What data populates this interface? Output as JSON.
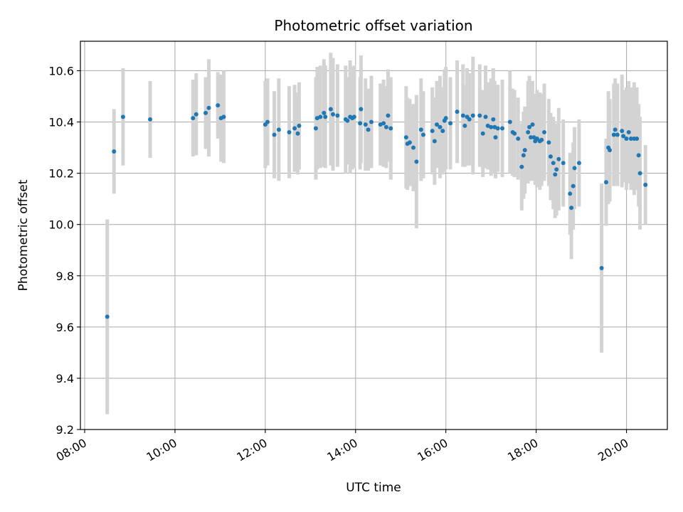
{
  "chart_data": {
    "type": "scatter",
    "title": "Photometric offset variation",
    "xlabel": "UTC time",
    "ylabel": "Photometric offset",
    "x_unit": "hours UTC",
    "xlim": [
      8.0,
      21.0
    ],
    "ylim": [
      9.2,
      10.715
    ],
    "x_ticks": [
      8,
      10,
      12,
      14,
      16,
      18,
      20
    ],
    "x_tick_labels": [
      "08:00",
      "10:00",
      "12:00",
      "14:00",
      "16:00",
      "18:00",
      "20:00"
    ],
    "y_ticks": [
      9.2,
      9.4,
      9.6,
      9.8,
      10.0,
      10.2,
      10.4,
      10.6
    ],
    "y_tick_labels": [
      "9.2",
      "9.4",
      "9.6",
      "9.8",
      "10.0",
      "10.2",
      "10.4",
      "10.6"
    ],
    "grid": true,
    "point_color": "#1f77b4",
    "errorbar_color": "#d3d3d3",
    "series": [
      {
        "points": [
          [
            8.5,
            9.64,
            0.38
          ],
          [
            8.65,
            10.285,
            0.165
          ],
          [
            8.85,
            10.42,
            0.19
          ],
          [
            9.45,
            10.41,
            0.15
          ],
          [
            10.4,
            10.415,
            0.15
          ],
          [
            10.47,
            10.43,
            0.16
          ],
          [
            10.68,
            10.435,
            0.14
          ],
          [
            10.75,
            10.455,
            0.19
          ],
          [
            10.95,
            10.465,
            0.13
          ],
          [
            11.02,
            10.415,
            0.17
          ],
          [
            11.08,
            10.42,
            0.18
          ],
          [
            12.0,
            10.39,
            0.17
          ],
          [
            12.05,
            10.4,
            0.17
          ],
          [
            12.2,
            10.35,
            0.17
          ],
          [
            12.3,
            10.37,
            0.2
          ],
          [
            12.53,
            10.36,
            0.18
          ],
          [
            12.65,
            10.375,
            0.17
          ],
          [
            12.72,
            10.355,
            0.16
          ],
          [
            12.75,
            10.385,
            0.17
          ],
          [
            13.12,
            10.375,
            0.2
          ],
          [
            13.15,
            10.415,
            0.2
          ],
          [
            13.22,
            10.42,
            0.2
          ],
          [
            13.3,
            10.435,
            0.21
          ],
          [
            13.33,
            10.42,
            0.2
          ],
          [
            13.45,
            10.45,
            0.22
          ],
          [
            13.5,
            10.43,
            0.22
          ],
          [
            13.6,
            10.425,
            0.2
          ],
          [
            13.78,
            10.41,
            0.21
          ],
          [
            13.82,
            10.405,
            0.17
          ],
          [
            13.88,
            10.42,
            0.22
          ],
          [
            13.93,
            10.415,
            0.2
          ],
          [
            13.97,
            10.42,
            0.2
          ],
          [
            14.1,
            10.395,
            0.18
          ],
          [
            14.12,
            10.45,
            0.21
          ],
          [
            14.22,
            10.39,
            0.18
          ],
          [
            14.28,
            10.37,
            0.16
          ],
          [
            14.35,
            10.4,
            0.18
          ],
          [
            14.55,
            10.39,
            0.16
          ],
          [
            14.62,
            10.395,
            0.17
          ],
          [
            14.68,
            10.38,
            0.16
          ],
          [
            14.72,
            10.425,
            0.18
          ],
          [
            14.78,
            10.375,
            0.2
          ],
          [
            15.12,
            10.34,
            0.2
          ],
          [
            15.15,
            10.315,
            0.18
          ],
          [
            15.2,
            10.32,
            0.17
          ],
          [
            15.28,
            10.3,
            0.17
          ],
          [
            15.35,
            10.245,
            0.26
          ],
          [
            15.45,
            10.37,
            0.2
          ],
          [
            15.5,
            10.35,
            0.17
          ],
          [
            15.7,
            10.365,
            0.17
          ],
          [
            15.75,
            10.325,
            0.17
          ],
          [
            15.8,
            10.39,
            0.17
          ],
          [
            15.87,
            10.38,
            0.2
          ],
          [
            15.93,
            10.365,
            0.17
          ],
          [
            15.97,
            10.405,
            0.2
          ],
          [
            16.0,
            10.415,
            0.2
          ],
          [
            16.1,
            10.395,
            0.18
          ],
          [
            16.25,
            10.44,
            0.2
          ],
          [
            16.38,
            10.425,
            0.2
          ],
          [
            16.42,
            10.385,
            0.16
          ],
          [
            16.47,
            10.42,
            0.19
          ],
          [
            16.52,
            10.41,
            0.18
          ],
          [
            16.6,
            10.425,
            0.23
          ],
          [
            16.75,
            10.425,
            0.2
          ],
          [
            16.82,
            10.355,
            0.17
          ],
          [
            16.88,
            10.42,
            0.2
          ],
          [
            16.93,
            10.385,
            0.17
          ],
          [
            17.0,
            10.38,
            0.19
          ],
          [
            17.05,
            10.41,
            0.2
          ],
          [
            17.08,
            10.38,
            0.18
          ],
          [
            17.1,
            10.34,
            0.16
          ],
          [
            17.15,
            10.375,
            0.17
          ],
          [
            17.25,
            10.375,
            0.19
          ],
          [
            17.42,
            10.4,
            0.2
          ],
          [
            17.48,
            10.36,
            0.17
          ],
          [
            17.52,
            10.355,
            0.17
          ],
          [
            17.6,
            10.335,
            0.16
          ],
          [
            17.68,
            10.225,
            0.17
          ],
          [
            17.72,
            10.27,
            0.17
          ],
          [
            17.75,
            10.29,
            0.17
          ],
          [
            17.82,
            10.36,
            0.2
          ],
          [
            17.85,
            10.38,
            0.2
          ],
          [
            17.88,
            10.34,
            0.17
          ],
          [
            17.92,
            10.39,
            0.17
          ],
          [
            17.95,
            10.34,
            0.17
          ],
          [
            17.98,
            10.325,
            0.17
          ],
          [
            18.02,
            10.335,
            0.19
          ],
          [
            18.08,
            10.325,
            0.19
          ],
          [
            18.12,
            10.33,
            0.18
          ],
          [
            18.18,
            10.36,
            0.19
          ],
          [
            18.28,
            10.32,
            0.17
          ],
          [
            18.32,
            10.265,
            0.17
          ],
          [
            18.38,
            10.24,
            0.18
          ],
          [
            18.42,
            10.195,
            0.17
          ],
          [
            18.45,
            10.215,
            0.18
          ],
          [
            18.5,
            10.255,
            0.2
          ],
          [
            18.6,
            10.24,
            0.17
          ],
          [
            18.75,
            10.12,
            0.16
          ],
          [
            18.78,
            10.065,
            0.2
          ],
          [
            18.82,
            10.15,
            0.17
          ],
          [
            18.85,
            10.22,
            0.16
          ],
          [
            18.95,
            10.24,
            0.17
          ],
          [
            19.45,
            9.83,
            0.33
          ],
          [
            19.55,
            10.165,
            0.17
          ],
          [
            19.6,
            10.3,
            0.22
          ],
          [
            19.63,
            10.29,
            0.2
          ],
          [
            19.72,
            10.35,
            0.2
          ],
          [
            19.75,
            10.37,
            0.2
          ],
          [
            19.8,
            10.35,
            0.2
          ],
          [
            19.9,
            10.365,
            0.22
          ],
          [
            19.93,
            10.345,
            0.18
          ],
          [
            20.0,
            10.335,
            0.2
          ],
          [
            20.05,
            10.36,
            0.2
          ],
          [
            20.1,
            10.335,
            0.2
          ],
          [
            20.17,
            10.335,
            0.22
          ],
          [
            20.23,
            10.335,
            0.2
          ],
          [
            20.27,
            10.27,
            0.2
          ],
          [
            20.3,
            10.2,
            0.22
          ],
          [
            20.42,
            10.155,
            0.155
          ]
        ]
      }
    ]
  }
}
